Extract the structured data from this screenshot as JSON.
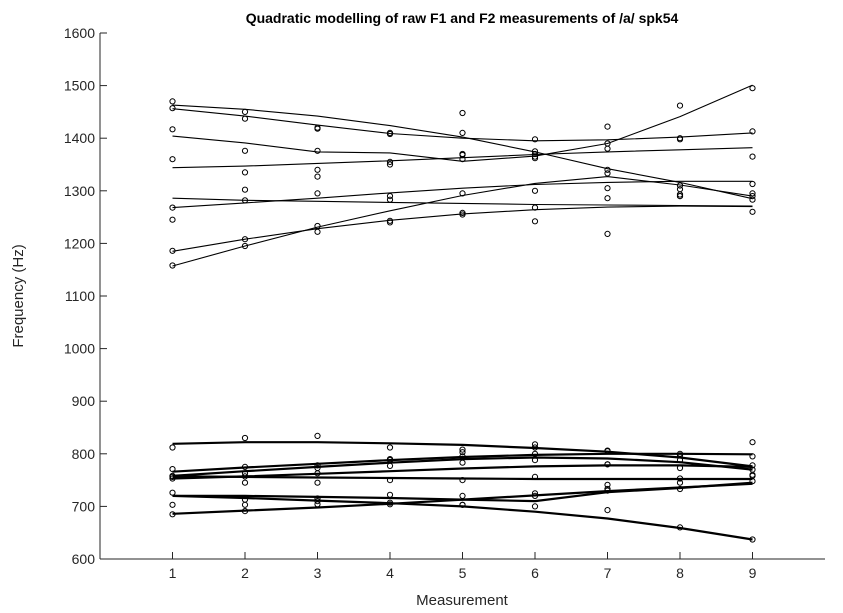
{
  "chart_data": {
    "type": "scatter",
    "title": "Quadratic modelling of raw F1 and F2 measurements of /a/ spk54",
    "xlabel": "Measurement",
    "ylabel": "Frequency (Hz)",
    "xlim": [
      0,
      10
    ],
    "ylim": [
      600,
      1600
    ],
    "xticks": [
      1,
      2,
      3,
      4,
      5,
      6,
      7,
      8,
      9
    ],
    "yticks": [
      600,
      700,
      800,
      900,
      1000,
      1100,
      1200,
      1300,
      1400,
      1500,
      1600
    ],
    "grid": false,
    "legend": "none",
    "x": [
      1,
      2,
      3,
      4,
      5,
      6,
      7,
      8,
      9
    ],
    "series": [
      {
        "group": "F2",
        "values": [
          1470,
          1450,
          1420,
          1408,
          1360,
          1370,
          1340,
          1310,
          1290
        ],
        "fit": [
          1463,
          1455,
          1442,
          1424,
          1402,
          1374,
          1342,
          1316,
          1285
        ]
      },
      {
        "group": "F2",
        "values": [
          1457,
          1437,
          1418,
          1410,
          1410,
          1398,
          1422,
          1462,
          1413
        ],
        "fit": [
          1456,
          1442,
          1425,
          1409,
          1400,
          1395,
          1397,
          1402,
          1410
        ]
      },
      {
        "group": "F2",
        "values": [
          1417,
          1376,
          1376,
          1355,
          1368,
          1375,
          1390,
          1398,
          1495
        ],
        "fit": [
          1404,
          1391,
          1374,
          1372,
          1356,
          1366,
          1390,
          1441,
          1501
        ]
      },
      {
        "group": "F2",
        "values": [
          1360,
          1335,
          1340,
          1350,
          1370,
          1365,
          1380,
          1400,
          1365
        ],
        "fit": [
          1344,
          1347,
          1352,
          1357,
          1363,
          1369,
          1374,
          1378,
          1382
        ]
      },
      {
        "group": "F2",
        "values": [
          1268,
          1282,
          1295,
          1290,
          1295,
          1300,
          1305,
          1293,
          1313
        ],
        "fit": [
          1268,
          1277,
          1286,
          1296,
          1305,
          1312,
          1316,
          1318,
          1318
        ]
      },
      {
        "group": "F2",
        "values": [
          1245,
          1302,
          1327,
          1243,
          1448,
          1242,
          1218,
          1290,
          1283
        ],
        "fit": [
          1286,
          1282,
          1280,
          1278,
          1276,
          1274,
          1273,
          1272,
          1271
        ]
      },
      {
        "group": "F2",
        "values": [
          1186,
          1208,
          1233,
          1283,
          1258,
          1268,
          1333,
          1303,
          1260
        ],
        "fit": [
          1185,
          1208,
          1228,
          1244,
          1256,
          1264,
          1269,
          1271,
          1270
        ]
      },
      {
        "group": "F2",
        "values": [
          1158,
          1195,
          1222,
          1240,
          1255,
          1362,
          1286,
          1290,
          1295
        ],
        "fit": [
          1157,
          1195,
          1231,
          1262,
          1291,
          1314,
          1327,
          1311,
          1290
        ]
      },
      {
        "group": "F1",
        "values": [
          812,
          830,
          834,
          812,
          808,
          818,
          805,
          800,
          822
        ],
        "fit": [
          819,
          822,
          822,
          820,
          817,
          811,
          804,
          793,
          776
        ]
      },
      {
        "group": "F1",
        "values": [
          771,
          775,
          778,
          790,
          795,
          800,
          806,
          797,
          795
        ],
        "fit": [
          766,
          774,
          781,
          788,
          794,
          798,
          800,
          800,
          799
        ]
      },
      {
        "group": "F1",
        "values": [
          758,
          763,
          773,
          788,
          803,
          812,
          780,
          788,
          770
        ],
        "fit": [
          758,
          767,
          775,
          783,
          790,
          793,
          791,
          784,
          770
        ]
      },
      {
        "group": "F1",
        "values": [
          753,
          757,
          763,
          777,
          783,
          788,
          780,
          773,
          778
        ],
        "fit": [
          753,
          757,
          762,
          767,
          772,
          776,
          778,
          778,
          775
        ]
      },
      {
        "group": "F1",
        "values": [
          756,
          745,
          745,
          750,
          750,
          756,
          733,
          753,
          758
        ],
        "fit": [
          757,
          756,
          755,
          754,
          753,
          752,
          752,
          752,
          752
        ]
      },
      {
        "group": "F1",
        "values": [
          726,
          713,
          715,
          722,
          720,
          725,
          730,
          745,
          760
        ],
        "fit": [
          720,
          720,
          718,
          716,
          713,
          710,
          727,
          735,
          745
        ]
      },
      {
        "group": "F1",
        "values": [
          703,
          703,
          710,
          707,
          703,
          700,
          693,
          660,
          637
        ],
        "fit": [
          720,
          716,
          711,
          706,
          700,
          690,
          677,
          659,
          637
        ]
      },
      {
        "group": "F1",
        "values": [
          685,
          691,
          704,
          704,
          703,
          720,
          741,
          733,
          748
        ],
        "fit": [
          686,
          692,
          698,
          705,
          713,
          721,
          729,
          736,
          743
        ]
      }
    ]
  }
}
